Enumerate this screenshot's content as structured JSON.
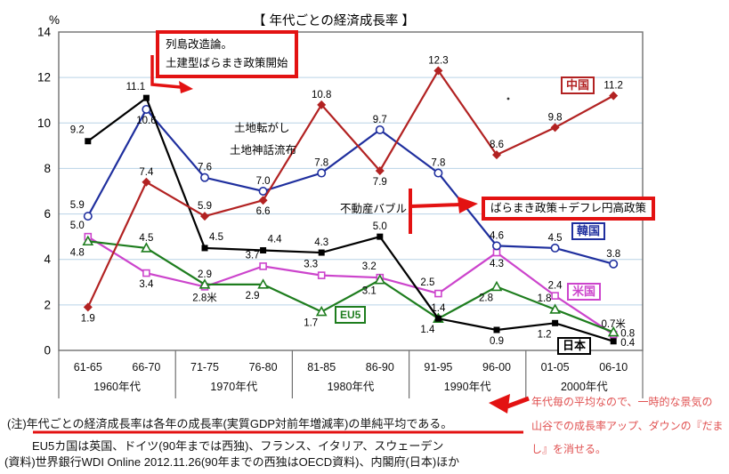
{
  "chart_data": {
    "type": "line",
    "title": "【 年代ごとの経済成長率 】",
    "y_unit": "%",
    "ylim": [
      0,
      14
    ],
    "ytick_step": 2,
    "grid": true,
    "legend_position": "inline-boxes",
    "categories": [
      "61-65",
      "66-70",
      "71-75",
      "76-80",
      "81-85",
      "86-90",
      "91-95",
      "96-00",
      "01-05",
      "06-10"
    ],
    "decades": [
      "1960年代",
      "1970年代",
      "1980年代",
      "1990年代",
      "2000年代"
    ],
    "series": [
      {
        "name": "米国",
        "color": "#cc44cc",
        "marker": "square-open",
        "values": [
          5.0,
          3.4,
          2.8,
          3.7,
          3.3,
          3.2,
          2.5,
          4.3,
          2.4,
          0.7
        ],
        "labels": [
          "5.0",
          "3.4",
          "2.8米",
          "3.7",
          "3.3",
          "3.2",
          "2.5",
          "4.3",
          "2.4",
          "0.7米"
        ],
        "label_pos": [
          "al",
          "b",
          "b",
          "al",
          "al",
          "al",
          "al",
          "b",
          "a",
          "a"
        ]
      },
      {
        "name": "EU5",
        "color": "#1e7d1e",
        "marker": "triangle-open",
        "values": [
          4.8,
          4.5,
          2.9,
          2.9,
          1.7,
          3.1,
          1.4,
          2.8,
          1.8,
          0.8
        ],
        "labels": [
          "4.8",
          "4.5",
          "2.9",
          "2.9",
          "1.7",
          "3.1",
          "1.4",
          "2.8",
          "1.8",
          "0.8"
        ],
        "label_pos": [
          "bl",
          "a",
          "a",
          "bl",
          "bl",
          "bl",
          "bl",
          "bl",
          "al",
          "r"
        ]
      },
      {
        "name": "韓国",
        "color": "#1f2f9e",
        "marker": "circle-open",
        "values": [
          5.9,
          10.6,
          7.6,
          7.0,
          7.8,
          9.7,
          7.8,
          4.6,
          4.5,
          3.8
        ],
        "labels": [
          "5.9",
          "10.6",
          "7.6",
          "7.0",
          "7.8",
          "9.7",
          "7.8",
          "4.6",
          "4.5",
          "3.8"
        ],
        "label_pos": [
          "al",
          "b",
          "a",
          "a",
          "a",
          "a",
          "a",
          "a",
          "a",
          "a"
        ]
      },
      {
        "name": "日本",
        "color": "#000000",
        "marker": "square-filled",
        "values": [
          9.2,
          11.1,
          4.5,
          4.4,
          4.3,
          5.0,
          1.4,
          0.9,
          1.2,
          0.4
        ],
        "labels": [
          "9.2",
          "11.1",
          "4.5",
          "4.4",
          "4.3",
          "5.0",
          "1.4",
          "0.9",
          "1.2",
          "0.4"
        ],
        "label_pos": [
          "al",
          "al",
          "ar",
          "ar",
          "a",
          "a",
          "a",
          "b",
          "bl",
          "r"
        ]
      },
      {
        "name": "中国",
        "color": "#b22222",
        "marker": "diamond-filled",
        "values": [
          1.9,
          7.4,
          5.9,
          6.6,
          10.8,
          7.9,
          12.3,
          8.6,
          9.8,
          11.2
        ],
        "labels": [
          "1.9",
          "7.4",
          "5.9",
          "6.6",
          "10.8",
          "7.9",
          "12.3",
          "8.6",
          "9.8",
          "11.2"
        ],
        "label_pos": [
          "b",
          "a",
          "a",
          "b",
          "a",
          "b",
          "a",
          "a",
          "a",
          "a"
        ]
      }
    ]
  },
  "annotations": {
    "box_reform": [
      "列島改造論。",
      "土建型ばらまき政策開始"
    ],
    "box_baramaki": "ばらまき政策＋デフレ円高政策",
    "land_flipping": "土地転がし",
    "land_myth": "土地神話流布",
    "real_estate_bubble": "不動産バブル",
    "side_note": [
      "年代毎の平均なので、一時的な景気の",
      "山谷での成長率アップ、ダウンの『だま",
      "し』を消せる。"
    ]
  },
  "footnotes": {
    "line1": "(注)年代ごとの経済成長率は各年の成長率(実質GDP対前年増減率)の単純平均である。",
    "line2": "EU5カ国は英国、ドイツ(90年までは西独)、フランス、イタリア、スウェーデン",
    "line3": "(資料)世界銀行WDI Online  2012.11.26(90年までの西独はOECD資料)、内閣府(日本)ほか"
  },
  "colors": {
    "accent_red": "#e31212",
    "note_red": "#e05050",
    "grid": "#b9d3e6",
    "frame": "#707070",
    "text": "#000000"
  }
}
